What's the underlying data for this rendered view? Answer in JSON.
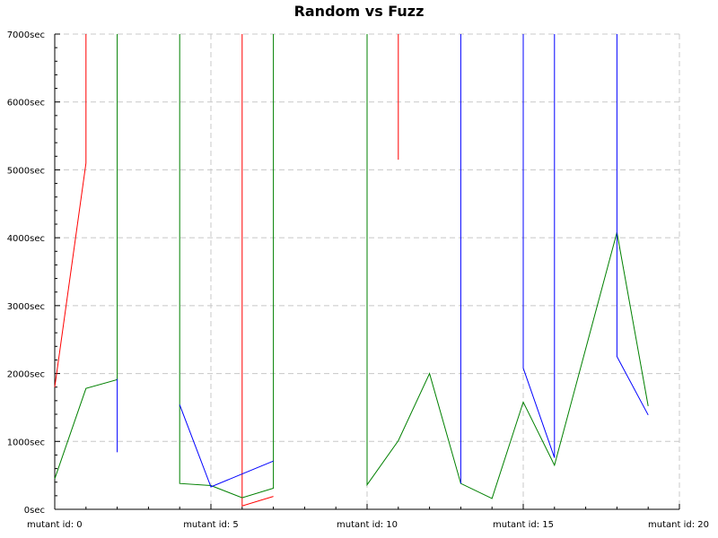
{
  "chart_data": {
    "type": "line",
    "title": "Random vs Fuzz",
    "x_tick_prefix": "mutant id: ",
    "y_tick_suffix": "sec",
    "xlim": [
      0,
      20
    ],
    "ylim": [
      0,
      7000
    ],
    "x_ticks": [
      0,
      5,
      10,
      15,
      20
    ],
    "y_ticks": [
      0,
      1000,
      2000,
      3000,
      4000,
      5000,
      6000,
      7000
    ],
    "grid": true,
    "legend": "none",
    "series": [
      {
        "color": "#ff0000",
        "points": [
          [
            0,
            1800
          ],
          [
            1,
            5100
          ],
          [
            1,
            7000
          ],
          null,
          [
            6,
            7000
          ],
          [
            6,
            50
          ],
          [
            7,
            190
          ],
          null,
          [
            11,
            7000
          ],
          [
            11,
            5150
          ]
        ]
      },
      {
        "color": "#008000",
        "points": [
          [
            0,
            450
          ],
          [
            1,
            1780
          ],
          [
            2,
            1910
          ],
          [
            2,
            7000
          ],
          null,
          [
            4,
            7000
          ],
          [
            4,
            380
          ],
          [
            5,
            350
          ],
          [
            6,
            170
          ],
          [
            7,
            310
          ],
          [
            7,
            7000
          ],
          null,
          [
            10,
            7000
          ],
          [
            10,
            360
          ],
          [
            11,
            1010
          ],
          [
            12,
            2000
          ],
          [
            13,
            380
          ],
          [
            14,
            160
          ],
          [
            15,
            1580
          ],
          [
            16,
            650
          ],
          [
            18,
            4080
          ],
          [
            19,
            1520
          ]
        ]
      },
      {
        "color": "#0000ff",
        "points": [
          [
            2,
            840
          ],
          [
            2,
            1920
          ],
          null,
          [
            4,
            1540
          ],
          [
            5,
            330
          ],
          [
            6,
            520
          ],
          [
            7,
            710
          ],
          null,
          [
            13,
            7000
          ],
          [
            13,
            380
          ],
          null,
          [
            15,
            7000
          ],
          [
            15,
            2080
          ],
          [
            16,
            760
          ],
          [
            16,
            7000
          ],
          null,
          [
            18,
            7000
          ],
          [
            18,
            2250
          ],
          [
            19,
            1390
          ]
        ]
      }
    ]
  }
}
